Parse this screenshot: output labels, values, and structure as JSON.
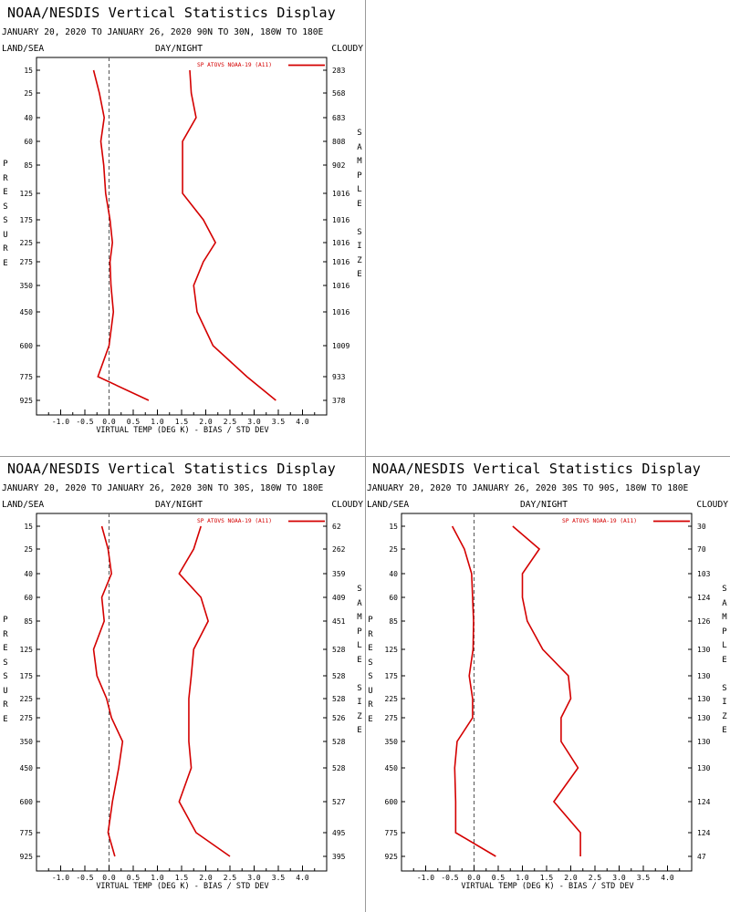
{
  "colors": {
    "series": "#d40000",
    "axis": "#000000",
    "zero_line": "#555555",
    "divider": "#9a9a9a"
  },
  "panels": [
    {
      "title": "NOAA/NESDIS Vertical Statistics Display",
      "subtitle": "JANUARY 20, 2020 TO JANUARY 26, 2020 90N TO 30N, 180W TO 180E",
      "header_left": "LAND/SEA",
      "header_mid": "DAY/NIGHT",
      "header_right": "CLOUDY",
      "left_vertical": [
        "P",
        "R",
        "E",
        "S",
        "S",
        "U",
        "R",
        "E"
      ],
      "right_vertical": [
        "S",
        "A",
        "M",
        "P",
        "L",
        "E",
        "",
        "S",
        "I",
        "Z",
        "E"
      ]
    },
    {
      "title": "NOAA/NESDIS Vertical Statistics Display",
      "subtitle": "JANUARY 20, 2020 TO JANUARY 26, 2020 30N TO 30S, 180W TO 180E",
      "header_left": "LAND/SEA",
      "header_mid": "DAY/NIGHT",
      "header_right": "CLOUDY",
      "left_vertical": [
        "P",
        "R",
        "E",
        "S",
        "S",
        "U",
        "R",
        "E"
      ],
      "right_vertical": [
        "S",
        "A",
        "M",
        "P",
        "L",
        "E",
        "",
        "S",
        "I",
        "Z",
        "E"
      ]
    },
    {
      "title": "NOAA/NESDIS Vertical Statistics Display",
      "subtitle": "JANUARY 20, 2020 TO JANUARY 26, 2020 30S TO 90S, 180W TO 180E",
      "header_left": "LAND/SEA",
      "header_mid": "DAY/NIGHT",
      "header_right": "CLOUDY",
      "left_vertical": [
        "P",
        "R",
        "E",
        "S",
        "S",
        "U",
        "R",
        "E"
      ],
      "right_vertical": [
        "S",
        "A",
        "M",
        "P",
        "L",
        "E",
        "",
        "S",
        "I",
        "Z",
        "E"
      ]
    }
  ],
  "chart_data": [
    {
      "type": "line",
      "title": "NOAA/NESDIS Vertical Statistics Display",
      "xlabel": "VIRTUAL TEMP (DEG K) - BIAS / STD DEV",
      "ylabel": "PRESSURE",
      "right_label": "SAMPLE SIZE",
      "xlim": [
        -1.5,
        4.5
      ],
      "x_ticks": [
        "-1.0",
        "-0.5",
        "0.0",
        "0.5",
        "1.0",
        "1.5",
        "2.0",
        "2.5",
        "3.0",
        "3.5",
        "4.0"
      ],
      "pressure_levels": [
        "15",
        "25",
        "40",
        "60",
        "85",
        "125",
        "175",
        "225",
        "275",
        "350",
        "450",
        "600",
        "775",
        "925"
      ],
      "legend": "SP ATOVS NOAA-19 (A11)",
      "sample_size": [
        "283",
        "568",
        "683",
        "808",
        "902",
        "1016",
        "1016",
        "1016",
        "1016",
        "1016",
        "1016",
        "1009",
        "933",
        "378"
      ],
      "bias": [
        -0.32,
        -0.2,
        -0.1,
        -0.17,
        -0.11,
        -0.07,
        0.02,
        0.07,
        0.02,
        0.04,
        0.09,
        0.0,
        -0.23,
        0.82
      ],
      "std_dev": [
        1.67,
        1.7,
        1.8,
        1.52,
        1.52,
        1.52,
        1.95,
        2.2,
        1.95,
        1.75,
        1.82,
        2.15,
        2.85,
        3.45
      ]
    },
    {
      "type": "line",
      "title": "NOAA/NESDIS Vertical Statistics Display",
      "xlabel": "VIRTUAL TEMP (DEG K) - BIAS / STD DEV",
      "ylabel": "PRESSURE",
      "right_label": "SAMPLE SIZE",
      "xlim": [
        -1.5,
        4.5
      ],
      "x_ticks": [
        "-1.0",
        "-0.5",
        "0.0",
        "0.5",
        "1.0",
        "1.5",
        "2.0",
        "2.5",
        "3.0",
        "3.5",
        "4.0"
      ],
      "pressure_levels": [
        "15",
        "25",
        "40",
        "60",
        "85",
        "125",
        "175",
        "225",
        "275",
        "350",
        "450",
        "600",
        "775",
        "925"
      ],
      "legend": "SP ATOVS NOAA-19 (A11)",
      "sample_size": [
        "62",
        "262",
        "359",
        "409",
        "451",
        "528",
        "528",
        "528",
        "526",
        "528",
        "528",
        "527",
        "495",
        "395"
      ],
      "bias": [
        -0.15,
        -0.02,
        0.05,
        -0.15,
        -0.1,
        -0.32,
        -0.25,
        -0.05,
        0.05,
        0.28,
        0.2,
        0.07,
        -0.02,
        0.12
      ],
      "std_dev": [
        1.9,
        1.75,
        1.45,
        1.9,
        2.05,
        1.75,
        1.7,
        1.65,
        1.65,
        1.65,
        1.7,
        1.45,
        1.8,
        2.5
      ]
    },
    {
      "type": "line",
      "title": "NOAA/NESDIS Vertical Statistics Display",
      "xlabel": "VIRTUAL TEMP (DEG K) - BIAS / STD DEV",
      "ylabel": "PRESSURE",
      "right_label": "SAMPLE SIZE",
      "xlim": [
        -1.5,
        4.5
      ],
      "x_ticks": [
        "-1.0",
        "-0.5",
        "0.0",
        "0.5",
        "1.0",
        "1.5",
        "2.0",
        "2.5",
        "3.0",
        "3.5",
        "4.0"
      ],
      "pressure_levels": [
        "15",
        "25",
        "40",
        "60",
        "85",
        "125",
        "175",
        "225",
        "275",
        "350",
        "450",
        "600",
        "775",
        "925"
      ],
      "legend": "SP ATOVS NOAA-19 (A11)",
      "sample_size": [
        "30",
        "70",
        "103",
        "124",
        "126",
        "130",
        "130",
        "130",
        "130",
        "130",
        "130",
        "124",
        "124",
        "47"
      ],
      "bias": [
        -0.45,
        -0.2,
        -0.05,
        -0.03,
        -0.01,
        -0.02,
        -0.1,
        -0.03,
        -0.03,
        -0.35,
        -0.4,
        -0.38,
        -0.38,
        0.45
      ],
      "std_dev": [
        0.8,
        1.35,
        1.0,
        1.0,
        1.1,
        1.42,
        1.95,
        2.0,
        1.8,
        1.8,
        2.15,
        1.65,
        2.2,
        2.2
      ]
    }
  ]
}
